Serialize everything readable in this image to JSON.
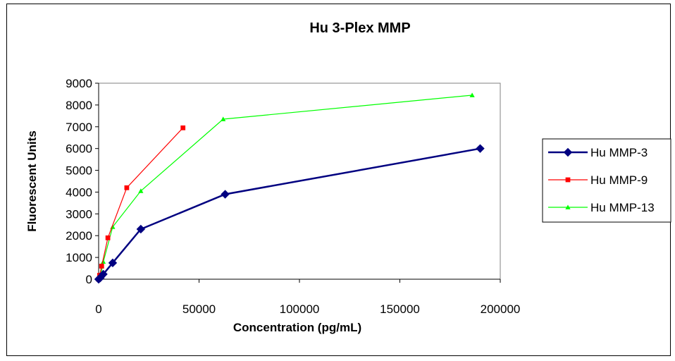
{
  "chart_data": {
    "type": "line",
    "title": "Hu 3-Plex MMP",
    "xlabel": "Concentration (pg/mL)",
    "ylabel": "Fluorescent Units",
    "xlim": [
      0,
      200000
    ],
    "ylim": [
      0,
      9000
    ],
    "x_ticks": [
      "0",
      "50000",
      "100000",
      "150000",
      "200000"
    ],
    "y_ticks": [
      "0",
      "1000",
      "2000",
      "3000",
      "4000",
      "5000",
      "6000",
      "7000",
      "8000",
      "9000"
    ],
    "grid": false,
    "legend_position": "right",
    "series": [
      {
        "name": "Hu MMP-3",
        "color": "#000080",
        "marker": "diamond",
        "points": [
          [
            0,
            0
          ],
          [
            800,
            60
          ],
          [
            2300,
            230
          ],
          [
            7000,
            750
          ],
          [
            21000,
            2300
          ],
          [
            63000,
            3900
          ],
          [
            190000,
            6000
          ]
        ]
      },
      {
        "name": "Hu MMP-9",
        "color": "#ff0000",
        "marker": "square",
        "points": [
          [
            0,
            0
          ],
          [
            500,
            180
          ],
          [
            1500,
            600
          ],
          [
            4600,
            1900
          ],
          [
            14000,
            4200
          ],
          [
            42000,
            6950
          ]
        ]
      },
      {
        "name": "Hu MMP-13",
        "color": "#00ff00",
        "marker": "triangle",
        "points": [
          [
            0,
            0
          ],
          [
            800,
            90
          ],
          [
            2300,
            800
          ],
          [
            7000,
            2400
          ],
          [
            21000,
            4050
          ],
          [
            62000,
            7350
          ],
          [
            186000,
            8450
          ]
        ]
      }
    ]
  }
}
